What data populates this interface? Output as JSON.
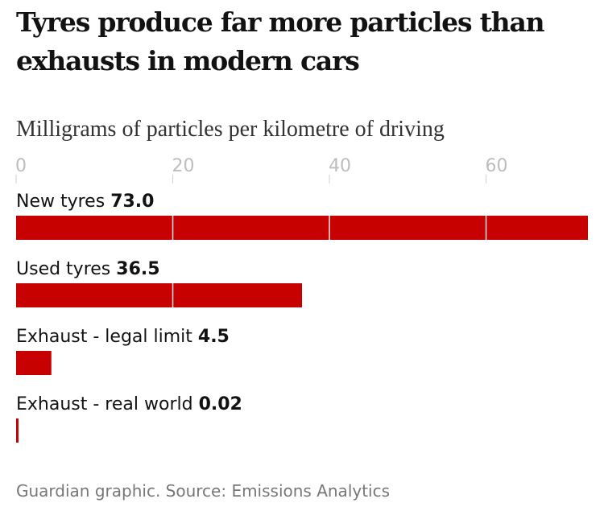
{
  "chart_data": {
    "type": "bar",
    "orientation": "horizontal",
    "title": "Tyres produce far more particles than exhausts in modern cars",
    "subtitle": "Milligrams of particles per kilometre of driving",
    "source": "Guardian graphic. Source: Emissions Analytics",
    "categories": [
      "New tyres",
      "Used tyres",
      "Exhaust - legal limit",
      "Exhaust - real world"
    ],
    "values": [
      73.0,
      36.5,
      4.5,
      0.02
    ],
    "value_labels": [
      "73.0",
      "36.5",
      "4.5",
      "0.02"
    ],
    "ticks": [
      0,
      20,
      40,
      60
    ],
    "tick_labels": [
      "0",
      "20",
      "40",
      "60"
    ],
    "xlim": [
      0,
      73
    ],
    "xlabel": "",
    "ylabel": "",
    "gridlines": true,
    "legend": "none",
    "bar_color": "#c70000"
  }
}
